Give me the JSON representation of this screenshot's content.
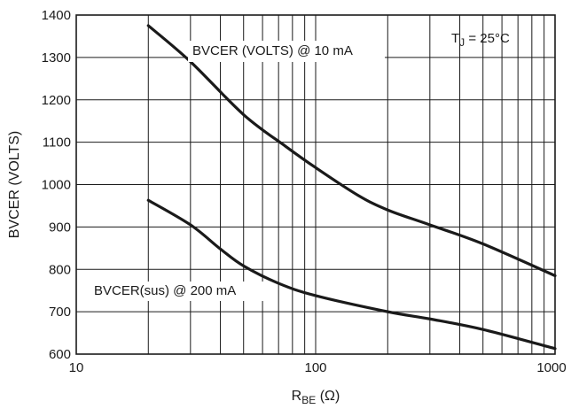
{
  "chart_data": {
    "type": "line",
    "xscale": "log",
    "xlim": [
      10,
      1000
    ],
    "ylim": [
      600,
      1400
    ],
    "grid": true,
    "xticks": [
      10,
      100,
      1000
    ],
    "xtick_labels": [
      "10",
      "100",
      "1000"
    ],
    "yticks": [
      600,
      700,
      800,
      900,
      1000,
      1100,
      1200,
      1300,
      1400
    ],
    "ytick_labels": [
      "600",
      "700",
      "800",
      "900",
      "1000",
      "1100",
      "1200",
      "1300",
      "1400"
    ],
    "xlabel_main": "R",
    "xlabel_sub": "BE",
    "xlabel_unit": " (Ω)",
    "ylabel": "BVCER (VOLTS)",
    "annotation_main": "T",
    "annotation_sub": "J",
    "annotation_rest": " = 25°C",
    "series": [
      {
        "name": "BVCER (VOLTS) @ 10 mA",
        "x": [
          20,
          30,
          50,
          75,
          100,
          150,
          200,
          300,
          500,
          1000
        ],
        "y": [
          1375,
          1290,
          1165,
          1090,
          1040,
          975,
          940,
          905,
          860,
          785
        ]
      },
      {
        "name": "BVCER(sus) @ 200 mA",
        "x": [
          20,
          30,
          40,
          50,
          70,
          100,
          200,
          300,
          500,
          1000
        ],
        "y": [
          963,
          905,
          848,
          808,
          767,
          738,
          700,
          683,
          658,
          613
        ]
      }
    ]
  }
}
